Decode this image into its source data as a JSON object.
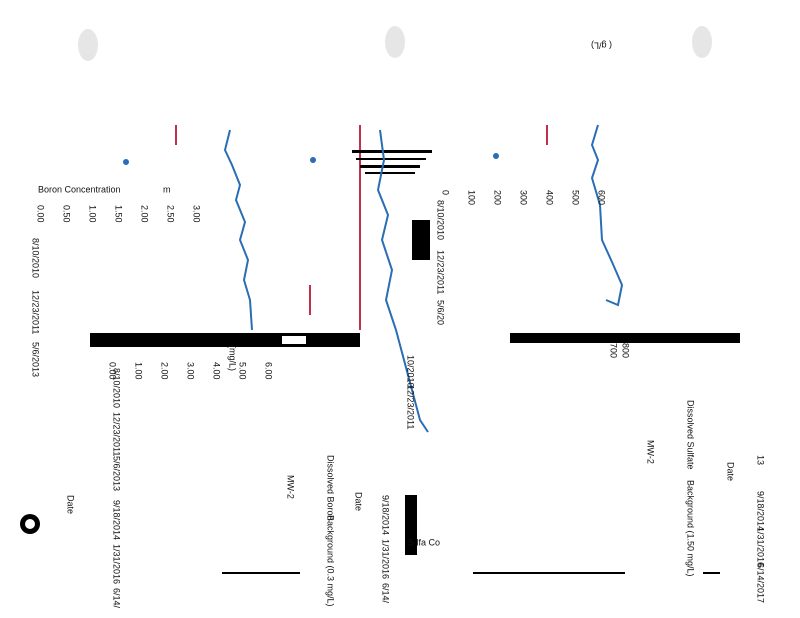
{
  "left_chart": {
    "legend_label": "Boron Concentration",
    "unit_fragment": "m",
    "ticks": [
      "0.00",
      "0.50",
      "1.00",
      "1.50",
      "2.00",
      "2.50",
      "3.00"
    ],
    "dates": [
      "8/10/2010",
      "12/23/2011",
      "5/6/2013"
    ]
  },
  "middle_chart": {
    "unit": "(mg/L)",
    "ticks": [
      "0.00",
      "1.00",
      "2.00",
      "3.00",
      "4.00",
      "5.00",
      "6.00"
    ],
    "dates": [
      "8/10/2010",
      "12/23/2011",
      "5/6/2013",
      "9/18/2014",
      "1/31/2016",
      "6/14/"
    ],
    "title": "Dissolved Boron",
    "well": "MW-2",
    "x_label": "Date",
    "background": "Background (0.3 mg/L)",
    "outer_x_label": "Date"
  },
  "right_chart": {
    "unit": "( g/L)",
    "ticks": [
      "0",
      "100",
      "200",
      "300",
      "400",
      "500",
      "600"
    ],
    "dates": [
      "8/10/2010",
      "12/23/2011",
      "5/6/20"
    ],
    "ticks_upper": [
      "800",
      "700"
    ],
    "title": "Dissolved Sulfate",
    "background": "Background (1.50 mg/L)",
    "well": "MW-2",
    "x_label": "Date",
    "dates_lower": [
      "13",
      "9/18/2014",
      "1/31/2016",
      "6/14/2017"
    ],
    "dates_mid": [
      "10/2010",
      "12/23/2011"
    ],
    "dates_overlay": [
      "9/18/2014",
      "1/31/2016",
      "6/14/"
    ],
    "legend_fragment": "S lfa Co"
  }
}
